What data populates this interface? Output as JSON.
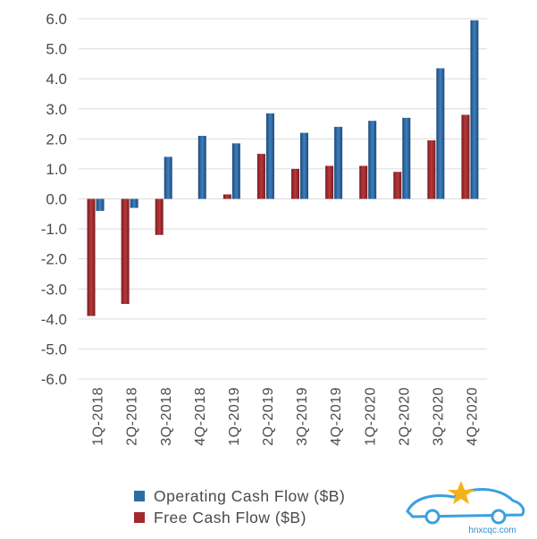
{
  "chart_data": {
    "type": "bar",
    "categories": [
      "1Q-2018",
      "2Q-2018",
      "3Q-2018",
      "4Q-2018",
      "1Q-2019",
      "2Q-2019",
      "3Q-2019",
      "4Q-2019",
      "1Q-2020",
      "2Q-2020",
      "3Q-2020",
      "4Q-2020"
    ],
    "series": [
      {
        "name": "Free Cash Flow ($B)",
        "color": "#a3292c",
        "values": [
          -3.9,
          -3.5,
          -1.2,
          0.0,
          0.15,
          1.5,
          1.0,
          1.1,
          1.1,
          0.9,
          1.95,
          2.8
        ]
      },
      {
        "name": "Operating Cash Flow ($B)",
        "color": "#2e6da4",
        "values": [
          -0.4,
          -0.3,
          1.4,
          2.1,
          1.85,
          2.85,
          2.2,
          2.4,
          2.6,
          2.7,
          4.35,
          5.95
        ]
      }
    ],
    "yticks": [
      "6.0",
      "5.0",
      "4.0",
      "3.0",
      "2.0",
      "1.0",
      "0.0",
      "-1.0",
      "-2.0",
      "-3.0",
      "-4.0",
      "-5.0",
      "-6.0"
    ],
    "ylim": [
      -6,
      6
    ],
    "grid": true,
    "legend_position": "bottom"
  },
  "legend": {
    "operating": "Operating Cash Flow ($B)",
    "free": "Free Cash Flow ($B)"
  },
  "watermark": {
    "text": "hnxcqc.com"
  }
}
